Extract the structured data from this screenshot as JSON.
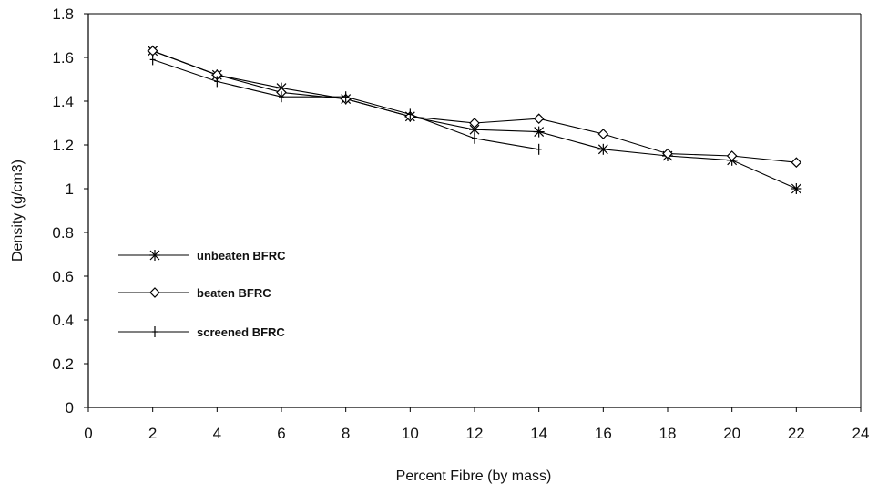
{
  "chart_data": {
    "type": "line",
    "title": "",
    "xlabel": "Percent Fibre (by mass)",
    "ylabel": "Density (g/cm3)",
    "xlim": [
      0,
      24
    ],
    "ylim": [
      0,
      1.8
    ],
    "x_ticks": [
      "0",
      "2",
      "4",
      "6",
      "8",
      "10",
      "12",
      "14",
      "16",
      "18",
      "20",
      "22",
      "24"
    ],
    "y_ticks": [
      "0",
      "0.2",
      "0.4",
      "0.6",
      "0.8",
      "1",
      "1.2",
      "1.4",
      "1.6",
      "1.8"
    ],
    "grid": false,
    "legend_position": "left",
    "series": [
      {
        "name": "unbeaten BFRC",
        "marker": "asterisk",
        "x": [
          2,
          4,
          6,
          8,
          10,
          12,
          14,
          16,
          18,
          20,
          22
        ],
        "y": [
          1.63,
          1.52,
          1.46,
          1.41,
          1.33,
          1.27,
          1.26,
          1.18,
          1.15,
          1.13,
          1.0
        ]
      },
      {
        "name": "beaten BFRC",
        "marker": "diamond",
        "x": [
          2,
          4,
          6,
          8,
          10,
          12,
          14,
          16,
          18,
          20,
          22
        ],
        "y": [
          1.63,
          1.52,
          1.44,
          1.41,
          1.33,
          1.3,
          1.32,
          1.25,
          1.16,
          1.15,
          1.12
        ]
      },
      {
        "name": "screened BFRC",
        "marker": "plus",
        "x": [
          2,
          4,
          6,
          8,
          10,
          12,
          14
        ],
        "y": [
          1.59,
          1.49,
          1.42,
          1.42,
          1.34,
          1.23,
          1.18
        ]
      }
    ]
  }
}
